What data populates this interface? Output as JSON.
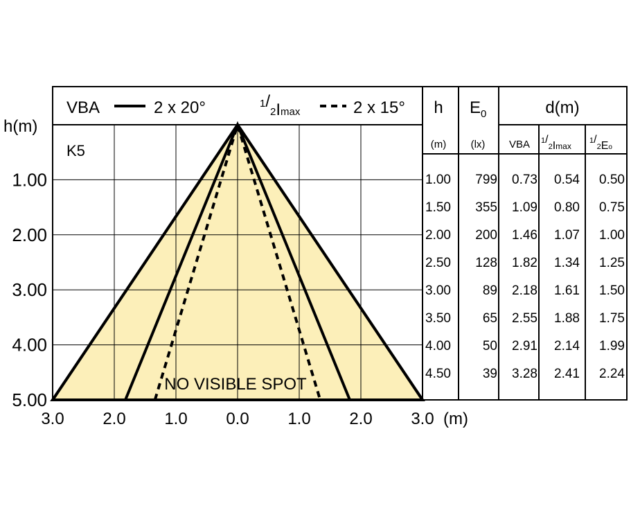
{
  "chart_data": {
    "type": "cone",
    "ylabel": "h(m)",
    "xunit": "(m)",
    "xlim": [
      -3,
      3
    ],
    "ylim": [
      0,
      5
    ],
    "xticks": [
      {
        "value": -3,
        "label": "3.0"
      },
      {
        "value": -2,
        "label": "2.0"
      },
      {
        "value": -1,
        "label": "1.0"
      },
      {
        "value": 0,
        "label": "0.0"
      },
      {
        "value": 1,
        "label": "1.0"
      },
      {
        "value": 2,
        "label": "2.0"
      },
      {
        "value": 3,
        "label": "3.0"
      }
    ],
    "yticks": [
      {
        "value": 1,
        "label": "1.00"
      },
      {
        "value": 2,
        "label": "2.00"
      },
      {
        "value": 3,
        "label": "3.00"
      },
      {
        "value": 4,
        "label": "4.00"
      },
      {
        "value": 5,
        "label": "5.00"
      }
    ],
    "grid": true,
    "fill_color": "#fcefb9",
    "fill_half_width": 3.0,
    "series": [
      {
        "name": "VBA",
        "value_label": "2 x 20°",
        "style": "solid",
        "color": "#000000",
        "half_width": 1.82
      },
      {
        "name_parts": [
          "1",
          "/",
          "2",
          "I",
          "max"
        ],
        "value_label": "2 x 15°",
        "style": "dashed",
        "color": "#000000",
        "half_width": 1.34
      }
    ],
    "annotations": [
      "K5",
      "NO VISIBLE SPOT"
    ]
  },
  "table": {
    "header": {
      "h": "h",
      "e_parts": [
        "E",
        "0"
      ],
      "d": "d(m)"
    },
    "subheader": {
      "h": "(m)",
      "e": "(lx)",
      "vba": "VBA",
      "imax_parts": [
        "1",
        "/",
        "2",
        "I",
        "max"
      ],
      "e0_parts": [
        "1",
        "/",
        "2",
        "E",
        "o"
      ]
    },
    "rows": [
      [
        "1.00",
        "799",
        "0.73",
        "0.54",
        "0.50"
      ],
      [
        "1.50",
        "355",
        "1.09",
        "0.80",
        "0.75"
      ],
      [
        "2.00",
        "200",
        "1.46",
        "1.07",
        "1.00"
      ],
      [
        "2.50",
        "128",
        "1.82",
        "1.34",
        "1.25"
      ],
      [
        "3.00",
        "89",
        "2.18",
        "1.61",
        "1.50"
      ],
      [
        "3.50",
        "65",
        "2.55",
        "1.88",
        "1.75"
      ],
      [
        "4.00",
        "50",
        "2.91",
        "2.14",
        "1.99"
      ],
      [
        "4.50",
        "39",
        "3.28",
        "2.41",
        "2.24"
      ]
    ]
  }
}
